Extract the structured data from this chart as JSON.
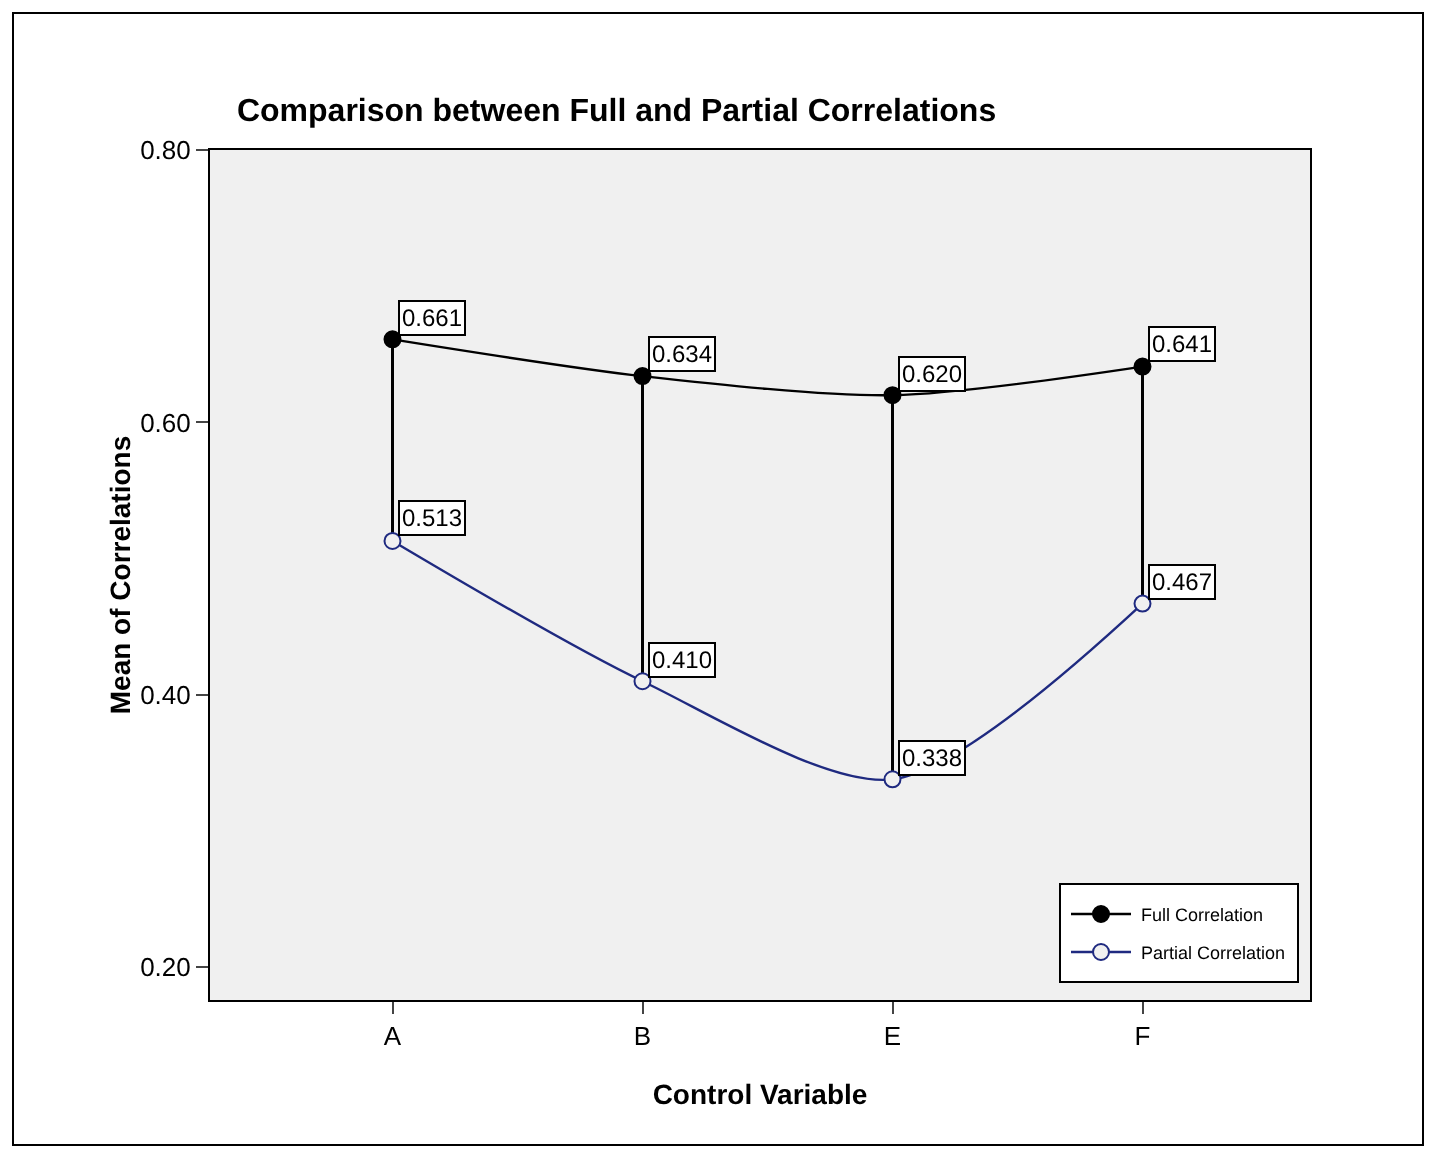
{
  "chart_data": {
    "type": "line",
    "title": "Comparison between Full and Partial Correlations",
    "xlabel": "Control Variable",
    "ylabel": "Mean of Correlations",
    "categories": [
      "A",
      "B",
      "E",
      "F"
    ],
    "series": [
      {
        "name": "Full Correlation",
        "color": "#000000",
        "values": [
          0.661,
          0.634,
          0.62,
          0.641
        ],
        "value_labels": [
          "0.661",
          "0.634",
          "0.620",
          "0.641"
        ]
      },
      {
        "name": "Partial Correlation",
        "color": "#1f2a80",
        "values": [
          0.513,
          0.41,
          0.338,
          0.467
        ],
        "value_labels": [
          "0.513",
          "0.410",
          "0.338",
          "0.467"
        ]
      }
    ],
    "ylim": [
      0.176,
      0.8
    ],
    "yticks": [
      {
        "value": 0.2,
        "label": "0.20"
      },
      {
        "value": 0.4,
        "label": "0.40"
      },
      {
        "value": 0.6,
        "label": "0.60"
      },
      {
        "value": 0.8,
        "label": "0.80"
      }
    ],
    "grid": false,
    "legend": "bottom right",
    "marker": "circle",
    "line_style": "solid"
  }
}
